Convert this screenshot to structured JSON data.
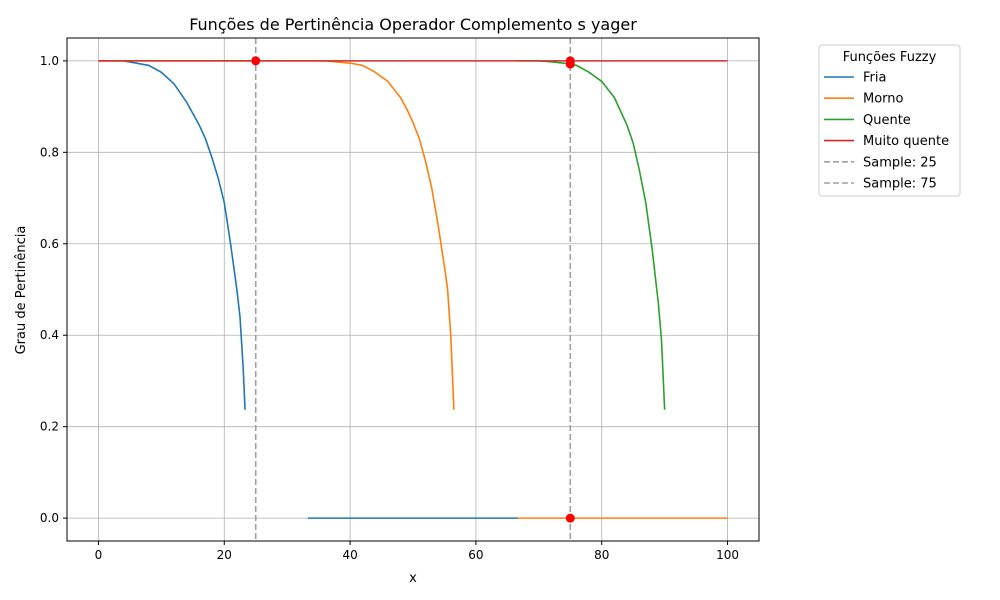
{
  "chart_data": {
    "type": "line",
    "title": "Funções de Pertinência Operador Complemento s yager",
    "xlabel": "x",
    "ylabel": "Grau de Pertinência",
    "xlim": [
      -5,
      105
    ],
    "ylim": [
      -0.05,
      1.05
    ],
    "xticks": [
      0,
      20,
      40,
      60,
      80,
      100
    ],
    "yticks": [
      0.0,
      0.2,
      0.4,
      0.6,
      0.8,
      1.0
    ],
    "grid": true,
    "legend": {
      "title": "Funções Fuzzy",
      "placement": "outside-right-top"
    },
    "series": [
      {
        "name": "Fria",
        "color": "#1f77b4",
        "x": [
          0,
          4,
          8,
          10,
          12,
          14,
          16,
          17,
          18,
          19,
          20,
          21,
          22,
          22.5,
          23,
          23.3
        ],
        "y": [
          1.0,
          1.0,
          0.99,
          0.975,
          0.95,
          0.91,
          0.86,
          0.83,
          0.79,
          0.745,
          0.69,
          0.6,
          0.5,
          0.44,
          0.33,
          0.237
        ],
        "tail_x": [
          33.3,
          66.7
        ],
        "tail_y": [
          0.0,
          0.0
        ]
      },
      {
        "name": "Morno",
        "color": "#ff7f0e",
        "x": [
          0,
          36,
          40,
          42,
          44,
          46,
          48,
          49,
          50,
          51,
          52,
          53,
          54,
          55,
          55.5,
          56,
          56.5
        ],
        "y": [
          1.0,
          1.0,
          0.995,
          0.99,
          0.975,
          0.955,
          0.92,
          0.895,
          0.865,
          0.83,
          0.78,
          0.72,
          0.64,
          0.55,
          0.5,
          0.4,
          0.237
        ],
        "tail_x": [
          66.7,
          100
        ],
        "tail_y": [
          0.0,
          0.0
        ]
      },
      {
        "name": "Quente",
        "color": "#2ca02c",
        "x": [
          66.7,
          70,
          72,
          74,
          76,
          78,
          80,
          82,
          83,
          84,
          85,
          86,
          87,
          88,
          89,
          89.5,
          90
        ],
        "y": [
          1.0,
          1.0,
          0.998,
          0.995,
          0.99,
          0.975,
          0.955,
          0.92,
          0.89,
          0.86,
          0.82,
          0.76,
          0.69,
          0.59,
          0.47,
          0.39,
          0.237
        ]
      },
      {
        "name": "Muito quente",
        "color": "#d62728",
        "x": [
          0,
          100
        ],
        "y": [
          1.0,
          1.0
        ]
      },
      {
        "name": "Sample: 25",
        "color": "#a0a0a0",
        "dashed": true,
        "vline": 25
      },
      {
        "name": "Sample: 75",
        "color": "#a0a0a0",
        "dashed": true,
        "vline": 75
      }
    ],
    "markers": [
      {
        "x": 25,
        "y": 1.0
      },
      {
        "x": 75,
        "y": 1.0
      },
      {
        "x": 75,
        "y": 0.993
      },
      {
        "x": 75,
        "y": 0.0
      }
    ],
    "marker_color": "#ff0000"
  }
}
